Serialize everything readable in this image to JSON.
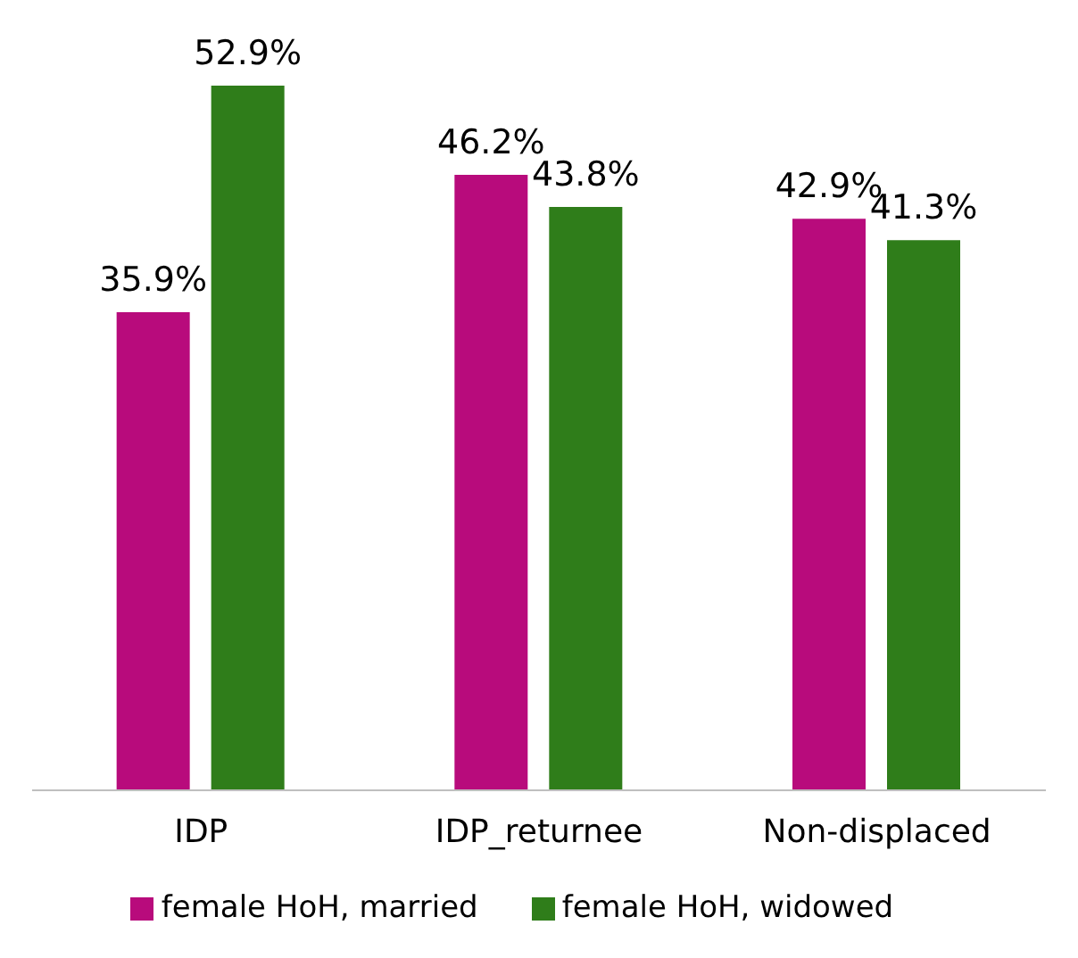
{
  "chart_data": {
    "type": "bar",
    "categories": [
      "IDP",
      "IDP_returnee",
      "Non-displaced"
    ],
    "series": [
      {
        "name": "female HoH, married",
        "color": "#b80b7c",
        "values": [
          35.9,
          46.2,
          42.9
        ],
        "value_labels": [
          "35.9%",
          "46.2%",
          "42.9%"
        ]
      },
      {
        "name": "female HoH, widowed",
        "color": "#2f7d1a",
        "values": [
          52.9,
          43.8,
          41.3
        ],
        "value_labels": [
          "52.9%",
          "43.8%",
          "41.3%"
        ]
      }
    ],
    "legend": "bottom",
    "grid": false
  }
}
